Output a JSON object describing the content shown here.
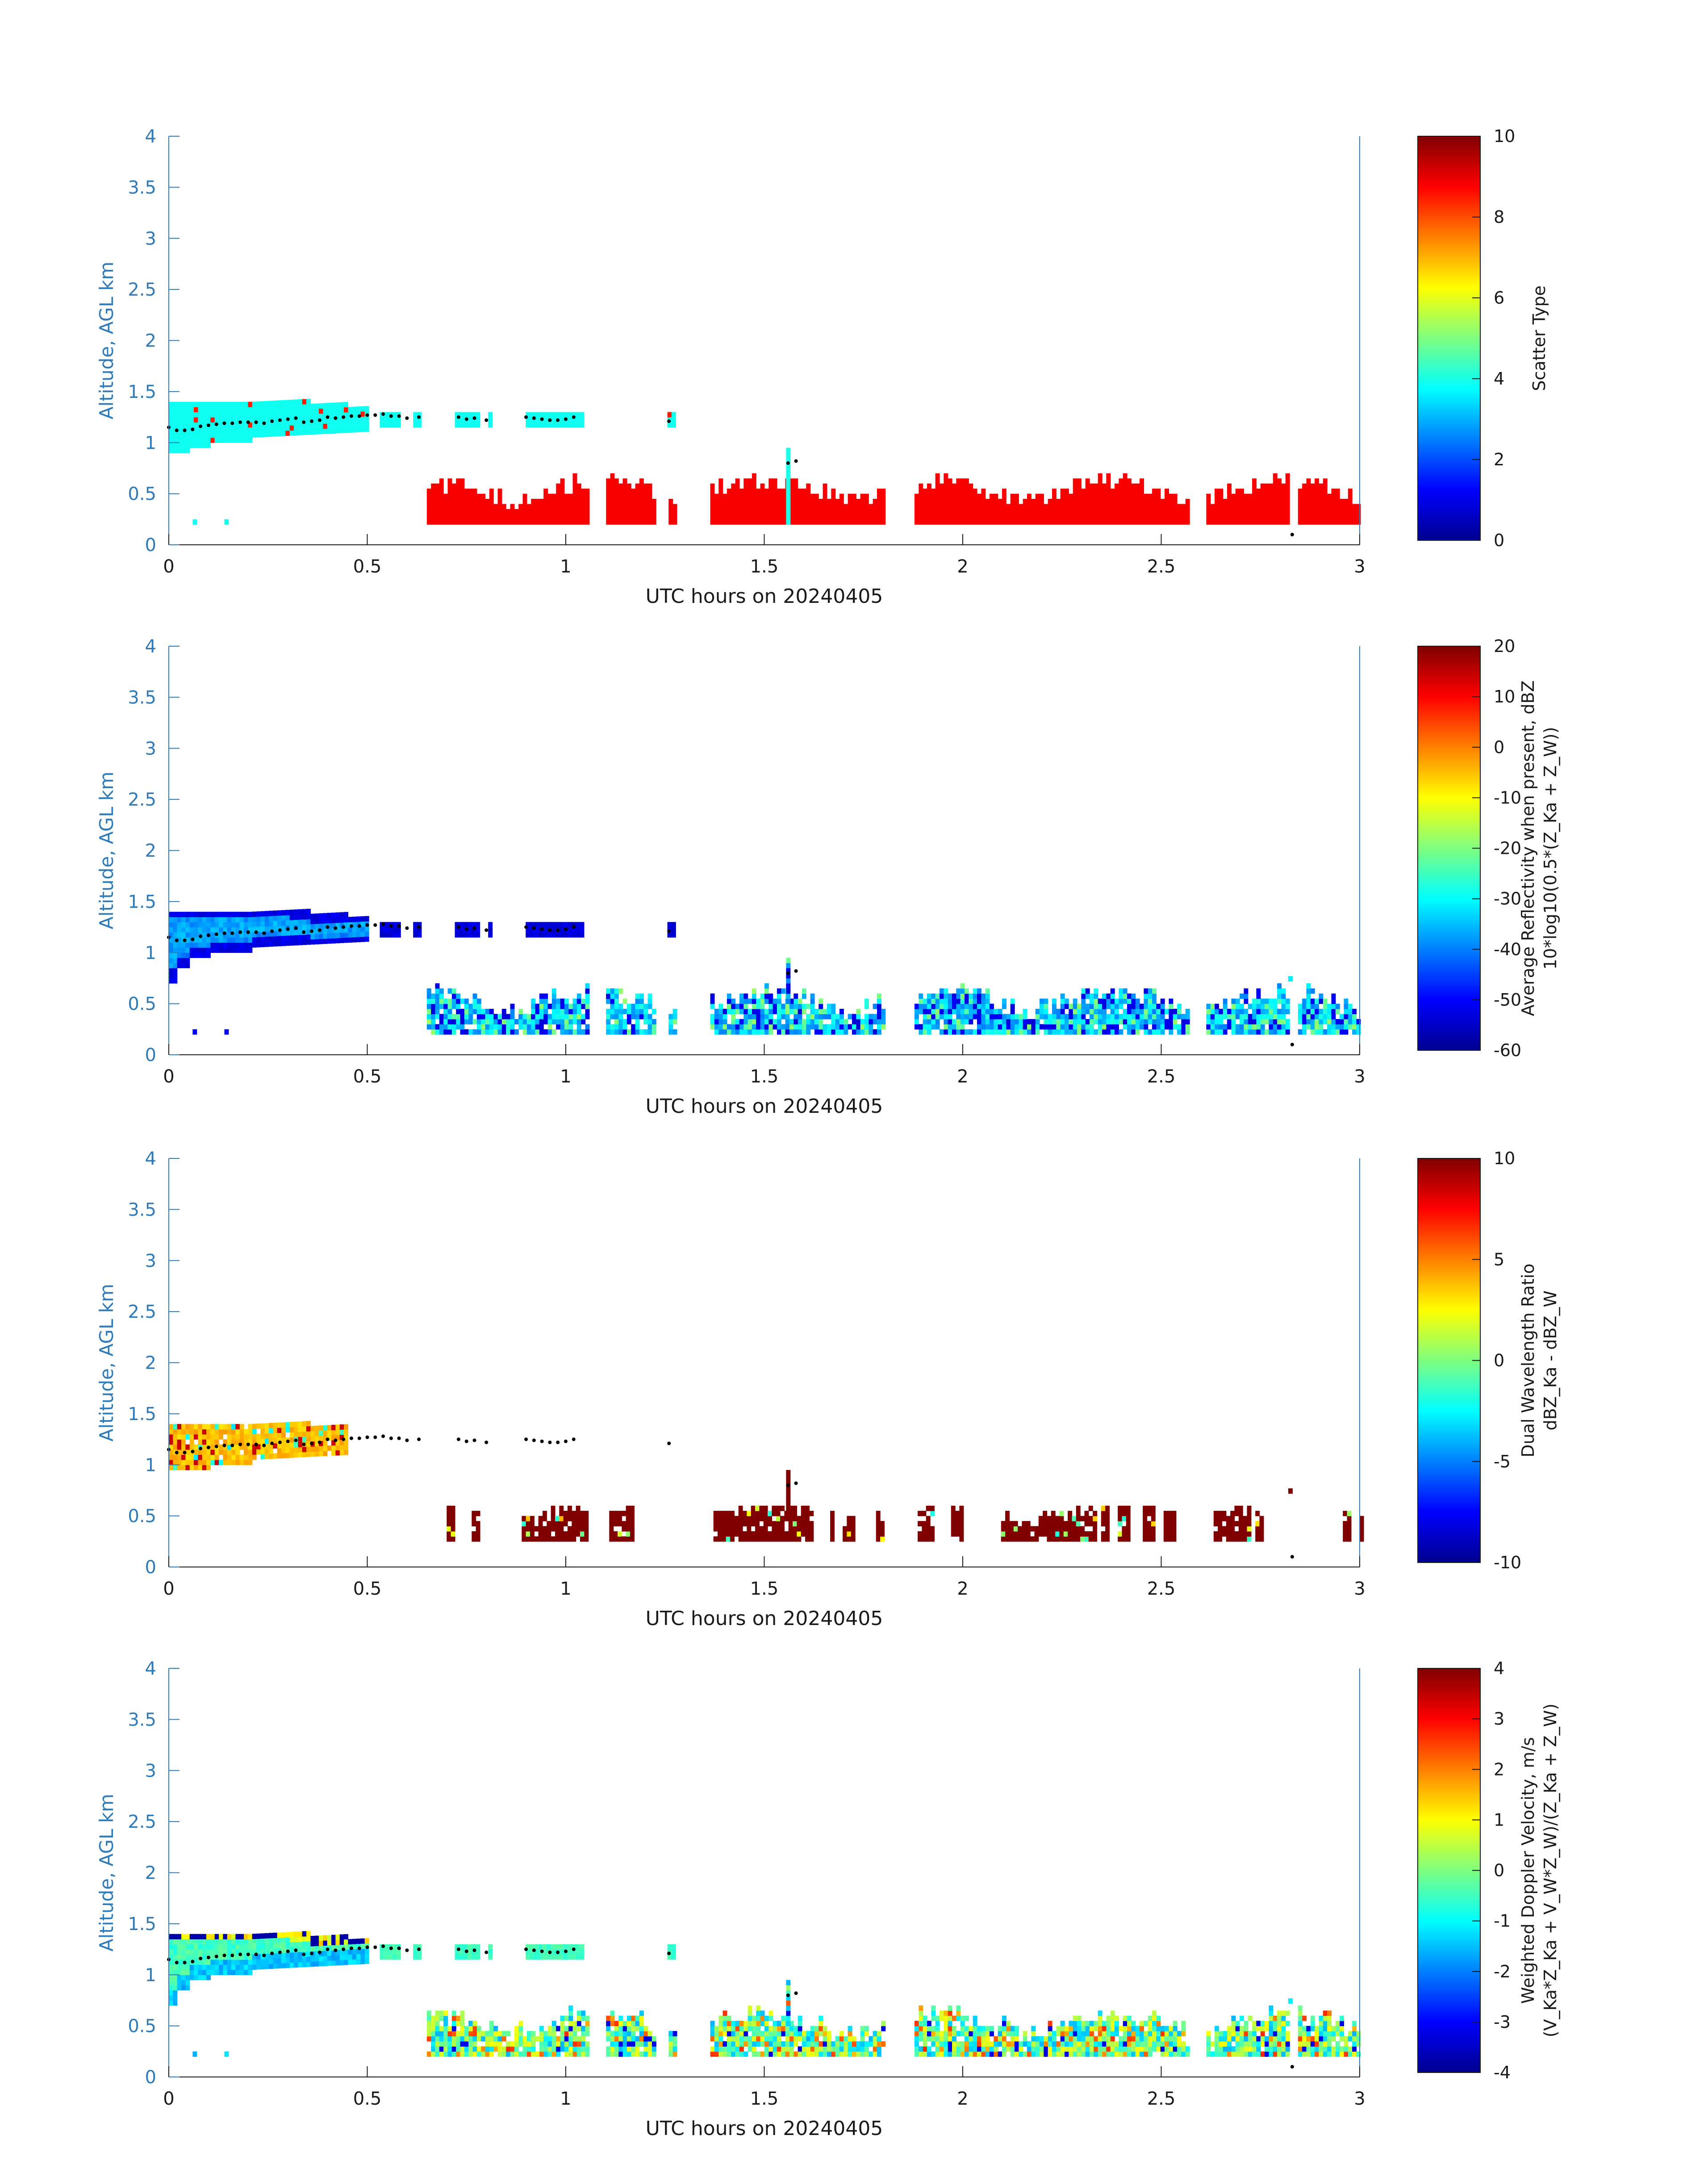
{
  "chart_data": [
    {
      "type": "heatmap",
      "xlabel": "UTC hours on 20240405",
      "ylabel": "Altitude, AGL km",
      "xlim": [
        0,
        3
      ],
      "ylim": [
        0,
        4
      ],
      "x_ticks": [
        "0",
        "0.5",
        "1",
        "1.5",
        "2",
        "2.5",
        "3"
      ],
      "y_ticks": [
        "0",
        "0.5",
        "1",
        "1.5",
        "2",
        "2.5",
        "3",
        "3.5",
        "4"
      ],
      "colorbar": {
        "label": "Scatter Type",
        "label2": "",
        "min": 0,
        "max": 10,
        "ticks": [
          "0",
          "2",
          "4",
          "6",
          "8",
          "10"
        ]
      },
      "field": "scatter",
      "regions": [
        {
          "name": "cloud_layer",
          "x": [
            0.0,
            0.5
          ],
          "y": [
            0.9,
            1.45
          ],
          "value": 4
        },
        {
          "name": "cloud_fragments",
          "x": [
            0.5,
            1.3
          ],
          "y": [
            1.15,
            1.3
          ],
          "value": 4
        },
        {
          "name": "surface_precip",
          "x": [
            0.65,
            3.0
          ],
          "y": [
            0.2,
            0.7
          ],
          "value": 9
        },
        {
          "name": "column_1_56",
          "x": [
            1.55,
            1.57
          ],
          "y": [
            0.2,
            0.95
          ],
          "value": 4
        }
      ]
    },
    {
      "type": "heatmap",
      "xlabel": "UTC hours on 20240405",
      "ylabel": "Altitude, AGL km",
      "xlim": [
        0,
        3
      ],
      "ylim": [
        0,
        4
      ],
      "x_ticks": [
        "0",
        "0.5",
        "1",
        "1.5",
        "2",
        "2.5",
        "3"
      ],
      "y_ticks": [
        "0",
        "0.5",
        "1",
        "1.5",
        "2",
        "2.5",
        "3",
        "3.5",
        "4"
      ],
      "colorbar": {
        "label": "Average Reflectivity when present, dBZ",
        "label2": "10*log10(0.5*(Z_Ka + Z_W))",
        "min": -60,
        "max": 20,
        "ticks": [
          "-60",
          "-50",
          "-40",
          "-30",
          "-20",
          "-10",
          "0",
          "10",
          "20"
        ]
      },
      "field": "reflectivity",
      "regions": [
        {
          "name": "cloud_layer",
          "x": [
            0.0,
            0.5
          ],
          "y": [
            0.7,
            1.45
          ],
          "value": -40
        },
        {
          "name": "cloud_fragments",
          "x": [
            0.5,
            1.3
          ],
          "y": [
            1.15,
            1.3
          ],
          "value": -55
        },
        {
          "name": "surface_precip",
          "x": [
            0.65,
            3.0
          ],
          "y": [
            0.2,
            0.75
          ],
          "value": -35
        }
      ]
    },
    {
      "type": "heatmap",
      "xlabel": "UTC hours on 20240405",
      "ylabel": "Altitude, AGL km",
      "xlim": [
        0,
        3
      ],
      "ylim": [
        0,
        4
      ],
      "x_ticks": [
        "0",
        "0.5",
        "1",
        "1.5",
        "2",
        "2.5",
        "3"
      ],
      "y_ticks": [
        "0",
        "0.5",
        "1",
        "1.5",
        "2",
        "2.5",
        "3",
        "3.5",
        "4"
      ],
      "colorbar": {
        "label": "Dual Wavelength Ratio",
        "label2": "dBZ_Ka - dBZ_W",
        "min": -10,
        "max": 10,
        "ticks": [
          "-10",
          "-5",
          "0",
          "5",
          "10"
        ]
      },
      "field": "dwr",
      "regions": [
        {
          "name": "cloud_layer",
          "x": [
            0.0,
            0.45
          ],
          "y": [
            0.95,
            1.45
          ],
          "value": 3.5
        },
        {
          "name": "surface_precip",
          "x": [
            0.7,
            3.0
          ],
          "y": [
            0.25,
            0.6
          ],
          "value": 10
        }
      ]
    },
    {
      "type": "heatmap",
      "xlabel": "UTC hours on 20240405",
      "ylabel": "Altitude, AGL km",
      "xlim": [
        0,
        3
      ],
      "ylim": [
        0,
        4
      ],
      "x_ticks": [
        "0",
        "0.5",
        "1",
        "1.5",
        "2",
        "2.5",
        "3"
      ],
      "y_ticks": [
        "0",
        "0.5",
        "1",
        "1.5",
        "2",
        "2.5",
        "3",
        "3.5",
        "4"
      ],
      "colorbar": {
        "label": "Weighted Doppler Velocity, m/s",
        "label2": "(V_Ka*Z_Ka + V_W*Z_W)/(Z_Ka + Z_W)",
        "min": -4,
        "max": 4,
        "ticks": [
          "-4",
          "-3",
          "-2",
          "-1",
          "0",
          "1",
          "2",
          "3",
          "4"
        ]
      },
      "field": "velocity",
      "regions": [
        {
          "name": "cloud_layer",
          "x": [
            0.0,
            0.5
          ],
          "y": [
            0.7,
            1.45
          ],
          "value": -0.8
        },
        {
          "name": "cloud_fragments",
          "x": [
            0.5,
            1.3
          ],
          "y": [
            1.15,
            1.3
          ],
          "value": -0.7
        },
        {
          "name": "surface_precip",
          "x": [
            0.65,
            3.0
          ],
          "y": [
            0.2,
            0.75
          ],
          "value": -0.5
        }
      ]
    }
  ],
  "cloud_base_series": {
    "x": [
      0.0,
      0.02,
      0.04,
      0.06,
      0.08,
      0.1,
      0.12,
      0.14,
      0.16,
      0.18,
      0.2,
      0.22,
      0.24,
      0.26,
      0.28,
      0.3,
      0.32,
      0.34,
      0.36,
      0.38,
      0.4,
      0.42,
      0.44,
      0.46,
      0.48,
      0.5,
      0.52,
      0.54,
      0.56,
      0.58,
      0.6,
      0.63,
      0.73,
      0.75,
      0.77,
      0.8,
      0.9,
      0.92,
      0.94,
      0.96,
      0.98,
      1.0,
      1.02,
      1.26,
      1.56,
      1.58,
      2.83
    ],
    "y": [
      1.15,
      1.12,
      1.12,
      1.13,
      1.16,
      1.17,
      1.18,
      1.19,
      1.19,
      1.2,
      1.2,
      1.2,
      1.19,
      1.21,
      1.22,
      1.23,
      1.24,
      1.2,
      1.21,
      1.22,
      1.25,
      1.24,
      1.25,
      1.26,
      1.26,
      1.27,
      1.27,
      1.28,
      1.26,
      1.26,
      1.24,
      1.25,
      1.25,
      1.23,
      1.24,
      1.22,
      1.25,
      1.24,
      1.23,
      1.22,
      1.22,
      1.23,
      1.25,
      1.21,
      0.8,
      0.82,
      0.1
    ]
  }
}
